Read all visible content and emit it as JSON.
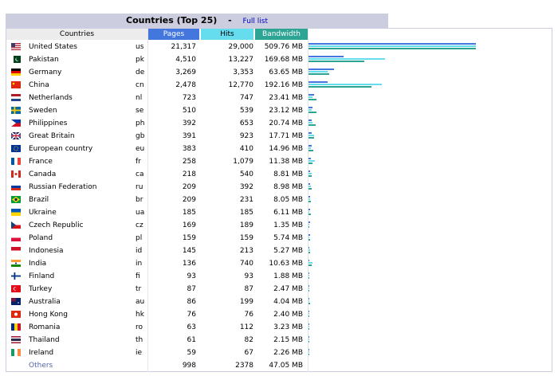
{
  "title": "Countries (Top 25)",
  "separator": "-",
  "full_list_label": "Full list",
  "headers": {
    "countries": "Countries",
    "pages": "Pages",
    "hits": "Hits",
    "bandwidth": "Bandwidth"
  },
  "rows": [
    {
      "name": "United States",
      "code": "us",
      "pages": "21,317",
      "hits": "29,000",
      "bandwidth": "509.76 MB",
      "p": 21317,
      "h": 29000,
      "b": 509.76,
      "flag": "us-flag-icon"
    },
    {
      "name": "Pakistan",
      "code": "pk",
      "pages": "4,510",
      "hits": "13,227",
      "bandwidth": "169.68 MB",
      "p": 4510,
      "h": 13227,
      "b": 169.68,
      "flag": "pk-flag-icon"
    },
    {
      "name": "Germany",
      "code": "de",
      "pages": "3,269",
      "hits": "3,353",
      "bandwidth": "63.65 MB",
      "p": 3269,
      "h": 3353,
      "b": 63.65,
      "flag": "de-flag-icon"
    },
    {
      "name": "China",
      "code": "cn",
      "pages": "2,478",
      "hits": "12,770",
      "bandwidth": "192.16 MB",
      "p": 2478,
      "h": 12770,
      "b": 192.16,
      "flag": "cn-flag-icon"
    },
    {
      "name": "Netherlands",
      "code": "nl",
      "pages": "723",
      "hits": "747",
      "bandwidth": "23.41 MB",
      "p": 723,
      "h": 747,
      "b": 23.41,
      "flag": "nl-flag-icon"
    },
    {
      "name": "Sweden",
      "code": "se",
      "pages": "510",
      "hits": "539",
      "bandwidth": "23.12 MB",
      "p": 510,
      "h": 539,
      "b": 23.12,
      "flag": "se-flag-icon"
    },
    {
      "name": "Philippines",
      "code": "ph",
      "pages": "392",
      "hits": "653",
      "bandwidth": "20.74 MB",
      "p": 392,
      "h": 653,
      "b": 20.74,
      "flag": "ph-flag-icon"
    },
    {
      "name": "Great Britain",
      "code": "gb",
      "pages": "391",
      "hits": "923",
      "bandwidth": "17.71 MB",
      "p": 391,
      "h": 923,
      "b": 17.71,
      "flag": "gb-flag-icon"
    },
    {
      "name": "European country",
      "code": "eu",
      "pages": "383",
      "hits": "410",
      "bandwidth": "14.96 MB",
      "p": 383,
      "h": 410,
      "b": 14.96,
      "flag": "eu-flag-icon"
    },
    {
      "name": "France",
      "code": "fr",
      "pages": "258",
      "hits": "1,079",
      "bandwidth": "11.38 MB",
      "p": 258,
      "h": 1079,
      "b": 11.38,
      "flag": "fr-flag-icon"
    },
    {
      "name": "Canada",
      "code": "ca",
      "pages": "218",
      "hits": "540",
      "bandwidth": "8.81 MB",
      "p": 218,
      "h": 540,
      "b": 8.81,
      "flag": "ca-flag-icon"
    },
    {
      "name": "Russian Federation",
      "code": "ru",
      "pages": "209",
      "hits": "392",
      "bandwidth": "8.98 MB",
      "p": 209,
      "h": 392,
      "b": 8.98,
      "flag": "ru-flag-icon"
    },
    {
      "name": "Brazil",
      "code": "br",
      "pages": "209",
      "hits": "231",
      "bandwidth": "8.05 MB",
      "p": 209,
      "h": 231,
      "b": 8.05,
      "flag": "br-flag-icon"
    },
    {
      "name": "Ukraine",
      "code": "ua",
      "pages": "185",
      "hits": "185",
      "bandwidth": "6.11 MB",
      "p": 185,
      "h": 185,
      "b": 6.11,
      "flag": "ua-flag-icon"
    },
    {
      "name": "Czech Republic",
      "code": "cz",
      "pages": "169",
      "hits": "189",
      "bandwidth": "1.35 MB",
      "p": 169,
      "h": 189,
      "b": 1.35,
      "flag": "cz-flag-icon"
    },
    {
      "name": "Poland",
      "code": "pl",
      "pages": "159",
      "hits": "159",
      "bandwidth": "5.74 MB",
      "p": 159,
      "h": 159,
      "b": 5.74,
      "flag": "pl-flag-icon"
    },
    {
      "name": "Indonesia",
      "code": "id",
      "pages": "145",
      "hits": "213",
      "bandwidth": "5.27 MB",
      "p": 145,
      "h": 213,
      "b": 5.27,
      "flag": "id-flag-icon"
    },
    {
      "name": "India",
      "code": "in",
      "pages": "136",
      "hits": "740",
      "bandwidth": "10.63 MB",
      "p": 136,
      "h": 740,
      "b": 10.63,
      "flag": "in-flag-icon"
    },
    {
      "name": "Finland",
      "code": "fi",
      "pages": "93",
      "hits": "93",
      "bandwidth": "1.88 MB",
      "p": 93,
      "h": 93,
      "b": 1.88,
      "flag": "fi-flag-icon"
    },
    {
      "name": "Turkey",
      "code": "tr",
      "pages": "87",
      "hits": "87",
      "bandwidth": "2.47 MB",
      "p": 87,
      "h": 87,
      "b": 2.47,
      "flag": "tr-flag-icon"
    },
    {
      "name": "Australia",
      "code": "au",
      "pages": "86",
      "hits": "199",
      "bandwidth": "4.04 MB",
      "p": 86,
      "h": 199,
      "b": 4.04,
      "flag": "au-flag-icon"
    },
    {
      "name": "Hong Kong",
      "code": "hk",
      "pages": "76",
      "hits": "76",
      "bandwidth": "2.40 MB",
      "p": 76,
      "h": 76,
      "b": 2.4,
      "flag": "hk-flag-icon"
    },
    {
      "name": "Romania",
      "code": "ro",
      "pages": "63",
      "hits": "112",
      "bandwidth": "3.23 MB",
      "p": 63,
      "h": 112,
      "b": 3.23,
      "flag": "ro-flag-icon"
    },
    {
      "name": "Thailand",
      "code": "th",
      "pages": "61",
      "hits": "82",
      "bandwidth": "2.15 MB",
      "p": 61,
      "h": 82,
      "b": 2.15,
      "flag": "th-flag-icon"
    },
    {
      "name": "Ireland",
      "code": "ie",
      "pages": "59",
      "hits": "67",
      "bandwidth": "2.26 MB",
      "p": 59,
      "h": 67,
      "b": 2.26,
      "flag": "ie-flag-icon"
    }
  ],
  "others": {
    "name": "Others",
    "pages": "998",
    "hits": "2378",
    "bandwidth": "47.05 MB"
  },
  "colors": {
    "pages": "#4477dd",
    "hits": "#66ddee",
    "bandwidth": "#2ea495",
    "title_bg": "#cccdde"
  }
}
